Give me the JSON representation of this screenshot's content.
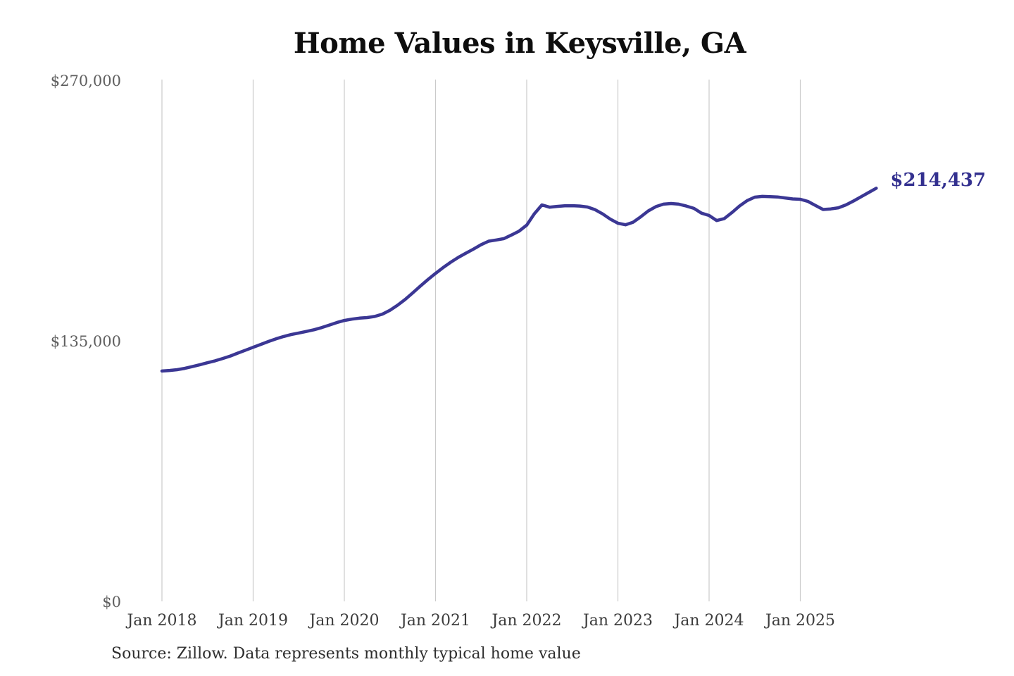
{
  "chart_data": {
    "type": "line",
    "title": "Home Values in Keysville, GA",
    "source_note": "Source: Zillow. Data represents monthly typical home value",
    "end_label": "$214,437",
    "legend": "none",
    "grid": "vertical year gridlines",
    "ylim": [
      0,
      270000
    ],
    "y_ticks": [
      {
        "value": 270000,
        "label": "$270,000"
      },
      {
        "value": 135000,
        "label": "$135,000"
      },
      {
        "value": 0,
        "label": "$0"
      }
    ],
    "x_ticks": [
      {
        "month_index": 0,
        "label": "Jan 2018"
      },
      {
        "month_index": 12,
        "label": "Jan 2019"
      },
      {
        "month_index": 24,
        "label": "Jan 2020"
      },
      {
        "month_index": 36,
        "label": "Jan 2021"
      },
      {
        "month_index": 48,
        "label": "Jan 2022"
      },
      {
        "month_index": 60,
        "label": "Jan 2023"
      },
      {
        "month_index": 72,
        "label": "Jan 2024"
      },
      {
        "month_index": 84,
        "label": "Jan 2025"
      }
    ],
    "series": [
      {
        "name": "Monthly typical home value",
        "color": "#3b3794",
        "interval": "monthly",
        "start_tick": "Jan 2018",
        "values": [
          119700,
          120000,
          120400,
          121100,
          122000,
          123000,
          124000,
          125000,
          126200,
          127500,
          129000,
          130500,
          132000,
          133500,
          135000,
          136400,
          137600,
          138600,
          139400,
          140200,
          141100,
          142200,
          143500,
          144800,
          145900,
          146600,
          147100,
          147400,
          148000,
          149200,
          151200,
          153800,
          156800,
          160200,
          163700,
          167100,
          170300,
          173300,
          176100,
          178600,
          180800,
          182900,
          185200,
          187000,
          187600,
          188300,
          190200,
          192200,
          195300,
          201200,
          205800,
          204600,
          205000,
          205300,
          205400,
          205200,
          204700,
          203300,
          201100,
          198400,
          196300,
          195500,
          196800,
          199600,
          202700,
          204900,
          206200,
          206500,
          206200,
          205200,
          204000,
          201500,
          200300,
          197700,
          198700,
          201800,
          205200,
          208000,
          209800,
          210200,
          210100,
          209900,
          209400,
          208900,
          208700,
          207600,
          205500,
          203400,
          203700,
          204300,
          205800,
          207800,
          210000,
          212200,
          214437
        ]
      }
    ],
    "colors": {
      "line": "#3b3794",
      "end_label": "#33308f",
      "gridline": "#cacaca",
      "title": "#0e0e0e",
      "x_tick": "#3c3c3c",
      "y_tick": "#5f5f5f",
      "background": "#ffffff"
    }
  }
}
